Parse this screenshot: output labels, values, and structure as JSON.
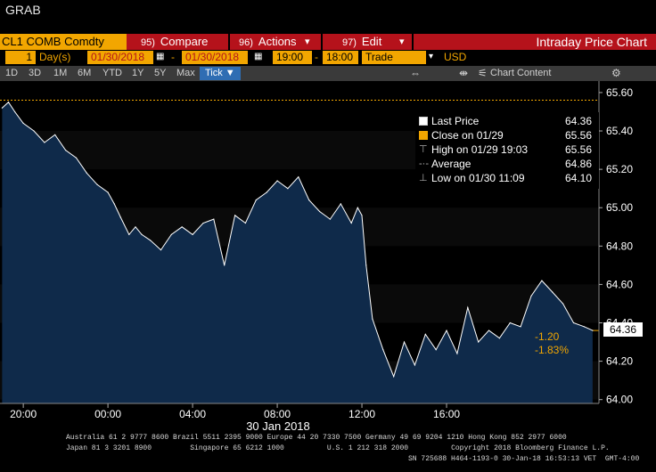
{
  "window": {
    "title": "GRAB"
  },
  "command_bar": {
    "ticker": "CL1 COMB Comdty",
    "compare": {
      "num": "95)",
      "label": "Compare"
    },
    "actions": {
      "num": "96)",
      "label": "Actions"
    },
    "edit": {
      "num": "97)",
      "label": "Edit"
    },
    "dropdown_glyph": "▾",
    "view_title": "Intraday Price Chart"
  },
  "params": {
    "period_value": "1",
    "period_unit": "Day(s)",
    "start_date": "01/30/2018",
    "dash": "-",
    "end_date": "01/30/2018",
    "start_time": "19:00",
    "end_time": "18:00",
    "event": "Trade",
    "currency": "USD"
  },
  "range_bar": {
    "ranges": [
      "1D",
      "3D",
      "1M",
      "6M",
      "YTD",
      "1Y",
      "5Y",
      "Max"
    ],
    "tick_label": "Tick ▼",
    "chart_content_label": "Chart Content"
  },
  "legend": {
    "items": [
      {
        "label": "Last Price",
        "value": "64.36",
        "color": "#ffffff",
        "icon": "square-swatch"
      },
      {
        "label": "Close on 01/29",
        "value": "65.56",
        "color": "#f2a600",
        "icon": "square-swatch"
      },
      {
        "label": "High on 01/29 19:03",
        "value": "65.56",
        "color": "#aaaaaa",
        "icon": "high-marker"
      },
      {
        "label": "Average",
        "value": "64.86",
        "color": "#aaaaaa",
        "icon": "average-marker"
      },
      {
        "label": "Low on 01/30 11:09",
        "value": "64.10",
        "color": "#aaaaaa",
        "icon": "low-marker"
      }
    ]
  },
  "last_price_label": "64.36",
  "change_abs": "-1.20",
  "change_pct": "-1.83%",
  "x_date_label": "30 Jan 2018",
  "footer": {
    "line1": "Australia 61 2 9777 8600 Brazil 5511 2395 9000 Europe 44 20 7330 7500 Germany 49 69 9204 1210 Hong Kong 852 2977 6000",
    "line2": "Japan 81 3 3201 8900         Singapore 65 6212 1000          U.S. 1 212 318 2000          Copyright 2018 Bloomberg Finance L.P.",
    "line3": "SN 725688 H464-1193-0 30-Jan-18 16:53:13 VET  GMT-4:00"
  },
  "colors": {
    "accent_orange": "#f2a600",
    "command_red": "#b5121b",
    "area_fill": "#0f2a4a",
    "line": "#ffffff"
  },
  "chart_data": {
    "type": "area",
    "x_tick_labels": [
      "20:00",
      "00:00",
      "04:00",
      "08:00",
      "12:00",
      "16:00"
    ],
    "y_tick_labels": [
      "64.00",
      "64.20",
      "64.40",
      "64.60",
      "64.80",
      "65.00",
      "65.20",
      "65.40",
      "65.60"
    ],
    "ylim": [
      63.98,
      65.66
    ],
    "xlim": [
      18.9,
      47.2
    ],
    "x_unit": "hours after 00:00 on 29 Jan 2018",
    "reference_line": {
      "name": "Close on 01/29",
      "value": 65.56
    },
    "series": [
      {
        "name": "Last Price",
        "x": [
          19.0,
          19.3,
          19.6,
          20.0,
          20.5,
          21.0,
          21.5,
          22.0,
          22.5,
          23.0,
          23.5,
          24.0,
          24.3,
          24.6,
          25.0,
          25.3,
          25.6,
          26.0,
          26.5,
          27.0,
          27.5,
          28.0,
          28.5,
          29.0,
          29.5,
          30.0,
          30.5,
          31.0,
          31.5,
          32.0,
          32.5,
          33.0,
          33.5,
          34.0,
          34.5,
          35.0,
          35.5,
          35.8,
          36.0,
          36.2,
          36.5,
          37.0,
          37.5,
          38.0,
          38.5,
          39.0,
          39.5,
          40.0,
          40.5,
          41.0,
          41.5,
          42.0,
          42.5,
          43.0,
          43.5,
          44.0,
          44.5,
          45.0,
          45.5,
          46.0,
          46.5,
          46.9
        ],
        "y": [
          65.52,
          65.55,
          65.5,
          65.44,
          65.4,
          65.34,
          65.38,
          65.3,
          65.26,
          65.18,
          65.12,
          65.08,
          65.02,
          64.95,
          64.86,
          64.9,
          64.86,
          64.83,
          64.78,
          64.86,
          64.9,
          64.86,
          64.92,
          64.94,
          64.7,
          64.96,
          64.92,
          65.04,
          65.08,
          65.14,
          65.1,
          65.16,
          65.04,
          64.98,
          64.94,
          65.02,
          64.92,
          65.0,
          64.96,
          64.7,
          64.42,
          64.26,
          64.12,
          64.3,
          64.18,
          64.34,
          64.26,
          64.36,
          64.24,
          64.48,
          64.3,
          64.36,
          64.32,
          64.4,
          64.38,
          64.54,
          64.62,
          64.56,
          64.5,
          64.4,
          64.38,
          64.36
        ]
      }
    ]
  }
}
